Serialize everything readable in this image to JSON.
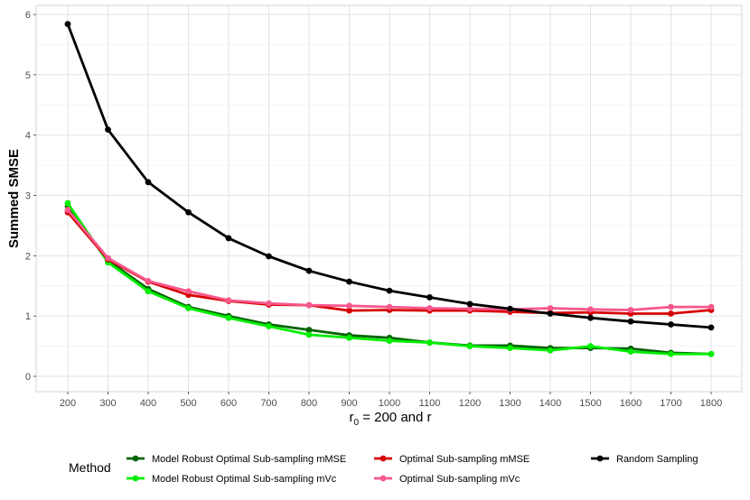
{
  "chart_data": {
    "type": "line",
    "xlabel_main": "r",
    "xlabel_sub": "0",
    "xlabel_rest": " = 200 and r",
    "ylabel": "Summed SMSE",
    "x": [
      200,
      300,
      400,
      500,
      600,
      700,
      800,
      900,
      1000,
      1100,
      1200,
      1300,
      1400,
      1500,
      1600,
      1700,
      1800
    ],
    "xlim": [
      200,
      1800
    ],
    "ylim": [
      0,
      6
    ],
    "y_ticks": [
      "0",
      "1",
      "2",
      "3",
      "4",
      "5",
      "6"
    ],
    "x_ticks": [
      "200",
      "300",
      "400",
      "500",
      "600",
      "700",
      "800",
      "900",
      "1000",
      "1100",
      "1200",
      "1300",
      "1400",
      "1500",
      "1600",
      "1700",
      "1800"
    ],
    "grid": true,
    "legend_position": "bottom",
    "legend_title": "Method",
    "series": [
      {
        "name": "Model Robust Optimal Sub-sampling mMSE",
        "color": "#006400",
        "values": [
          2.82,
          1.92,
          1.45,
          1.15,
          1.0,
          0.86,
          0.77,
          0.68,
          0.64,
          0.56,
          0.51,
          0.51,
          0.47,
          0.47,
          0.46,
          0.39,
          0.37
        ]
      },
      {
        "name": "Model Robust Optimal Sub-sampling mVc",
        "color": "#00EE00",
        "values": [
          2.87,
          1.89,
          1.41,
          1.13,
          0.97,
          0.83,
          0.69,
          0.64,
          0.59,
          0.56,
          0.5,
          0.47,
          0.43,
          0.5,
          0.41,
          0.37,
          0.37
        ]
      },
      {
        "name": "Optimal Sub-sampling mMSE",
        "color": "#D70000",
        "values": [
          2.72,
          1.94,
          1.57,
          1.35,
          1.25,
          1.19,
          1.18,
          1.09,
          1.1,
          1.09,
          1.09,
          1.07,
          1.05,
          1.06,
          1.04,
          1.04,
          1.1
        ]
      },
      {
        "name": "Optimal Sub-sampling mVc",
        "color": "#F7578B",
        "values": [
          2.76,
          1.96,
          1.58,
          1.41,
          1.26,
          1.21,
          1.18,
          1.17,
          1.15,
          1.13,
          1.12,
          1.11,
          1.13,
          1.11,
          1.1,
          1.15,
          1.15
        ]
      },
      {
        "name": "Random Sampling",
        "color": "#000000",
        "values": [
          5.84,
          4.09,
          3.22,
          2.72,
          2.29,
          1.99,
          1.75,
          1.57,
          1.42,
          1.31,
          1.2,
          1.12,
          1.04,
          0.97,
          0.91,
          0.86,
          0.81
        ]
      }
    ]
  }
}
